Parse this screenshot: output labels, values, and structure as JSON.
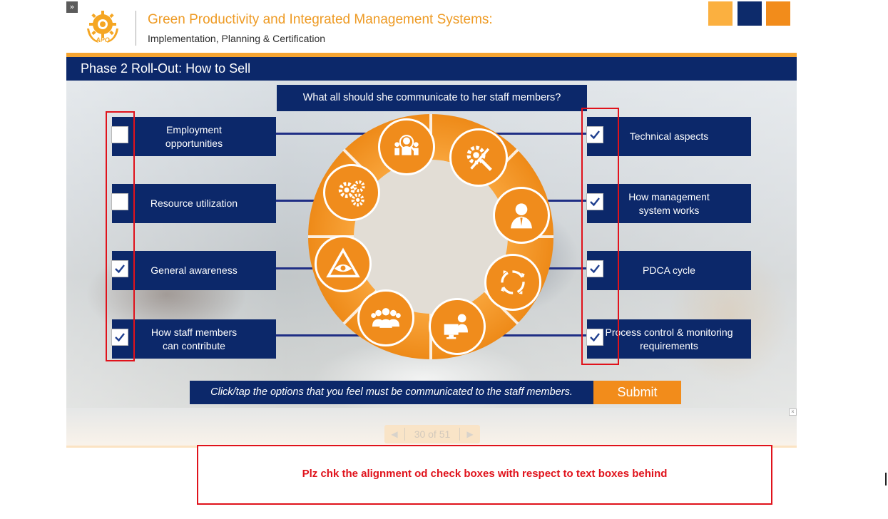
{
  "header": {
    "toggle_icon": "»",
    "logo_text": "APO",
    "title": "Green Productivity and Integrated Management Systems:",
    "subtitle": "Implementation, Planning & Certification",
    "accent_colors": [
      "#fbb040",
      "#0d2b6b",
      "#f28c1b"
    ]
  },
  "slide": {
    "phase_title": "Phase 2 Roll-Out: How to Sell",
    "question": "What all should she communicate to her staff members?",
    "left_options": [
      {
        "label": "Employment opportunities",
        "checked": false
      },
      {
        "label": "Resource utilization",
        "checked": false
      },
      {
        "label": "General awareness",
        "checked": true
      },
      {
        "label": "How staff members can contribute",
        "checked": true
      }
    ],
    "right_options": [
      {
        "label": "Technical aspects",
        "checked": true
      },
      {
        "label": "How management system works",
        "checked": true
      },
      {
        "label": "PDCA cycle",
        "checked": true
      },
      {
        "label": "Process control & monitoring requirements",
        "checked": true
      }
    ],
    "wheel_icons": [
      "people-search-icon",
      "gear-tools-icon",
      "manager-icon",
      "cycle-arrows-icon",
      "computer-user-icon",
      "team-icon",
      "eye-triangle-icon",
      "gears-icon"
    ],
    "instruction": "Click/tap the options that you feel must be communicated to the staff members.",
    "submit_label": "Submit",
    "brand_colors": {
      "navy": "#0c286a",
      "orange": "#f28c1b",
      "light_orange": "#f6a532"
    }
  },
  "navigation": {
    "prev_icon": "◀",
    "page_label": "30 of 51",
    "next_icon": "▶",
    "close_icon": "×"
  },
  "review_comment": {
    "text": "Plz chk the alignment od check boxes with respect to text boxes behind",
    "color": "#e0121b"
  }
}
